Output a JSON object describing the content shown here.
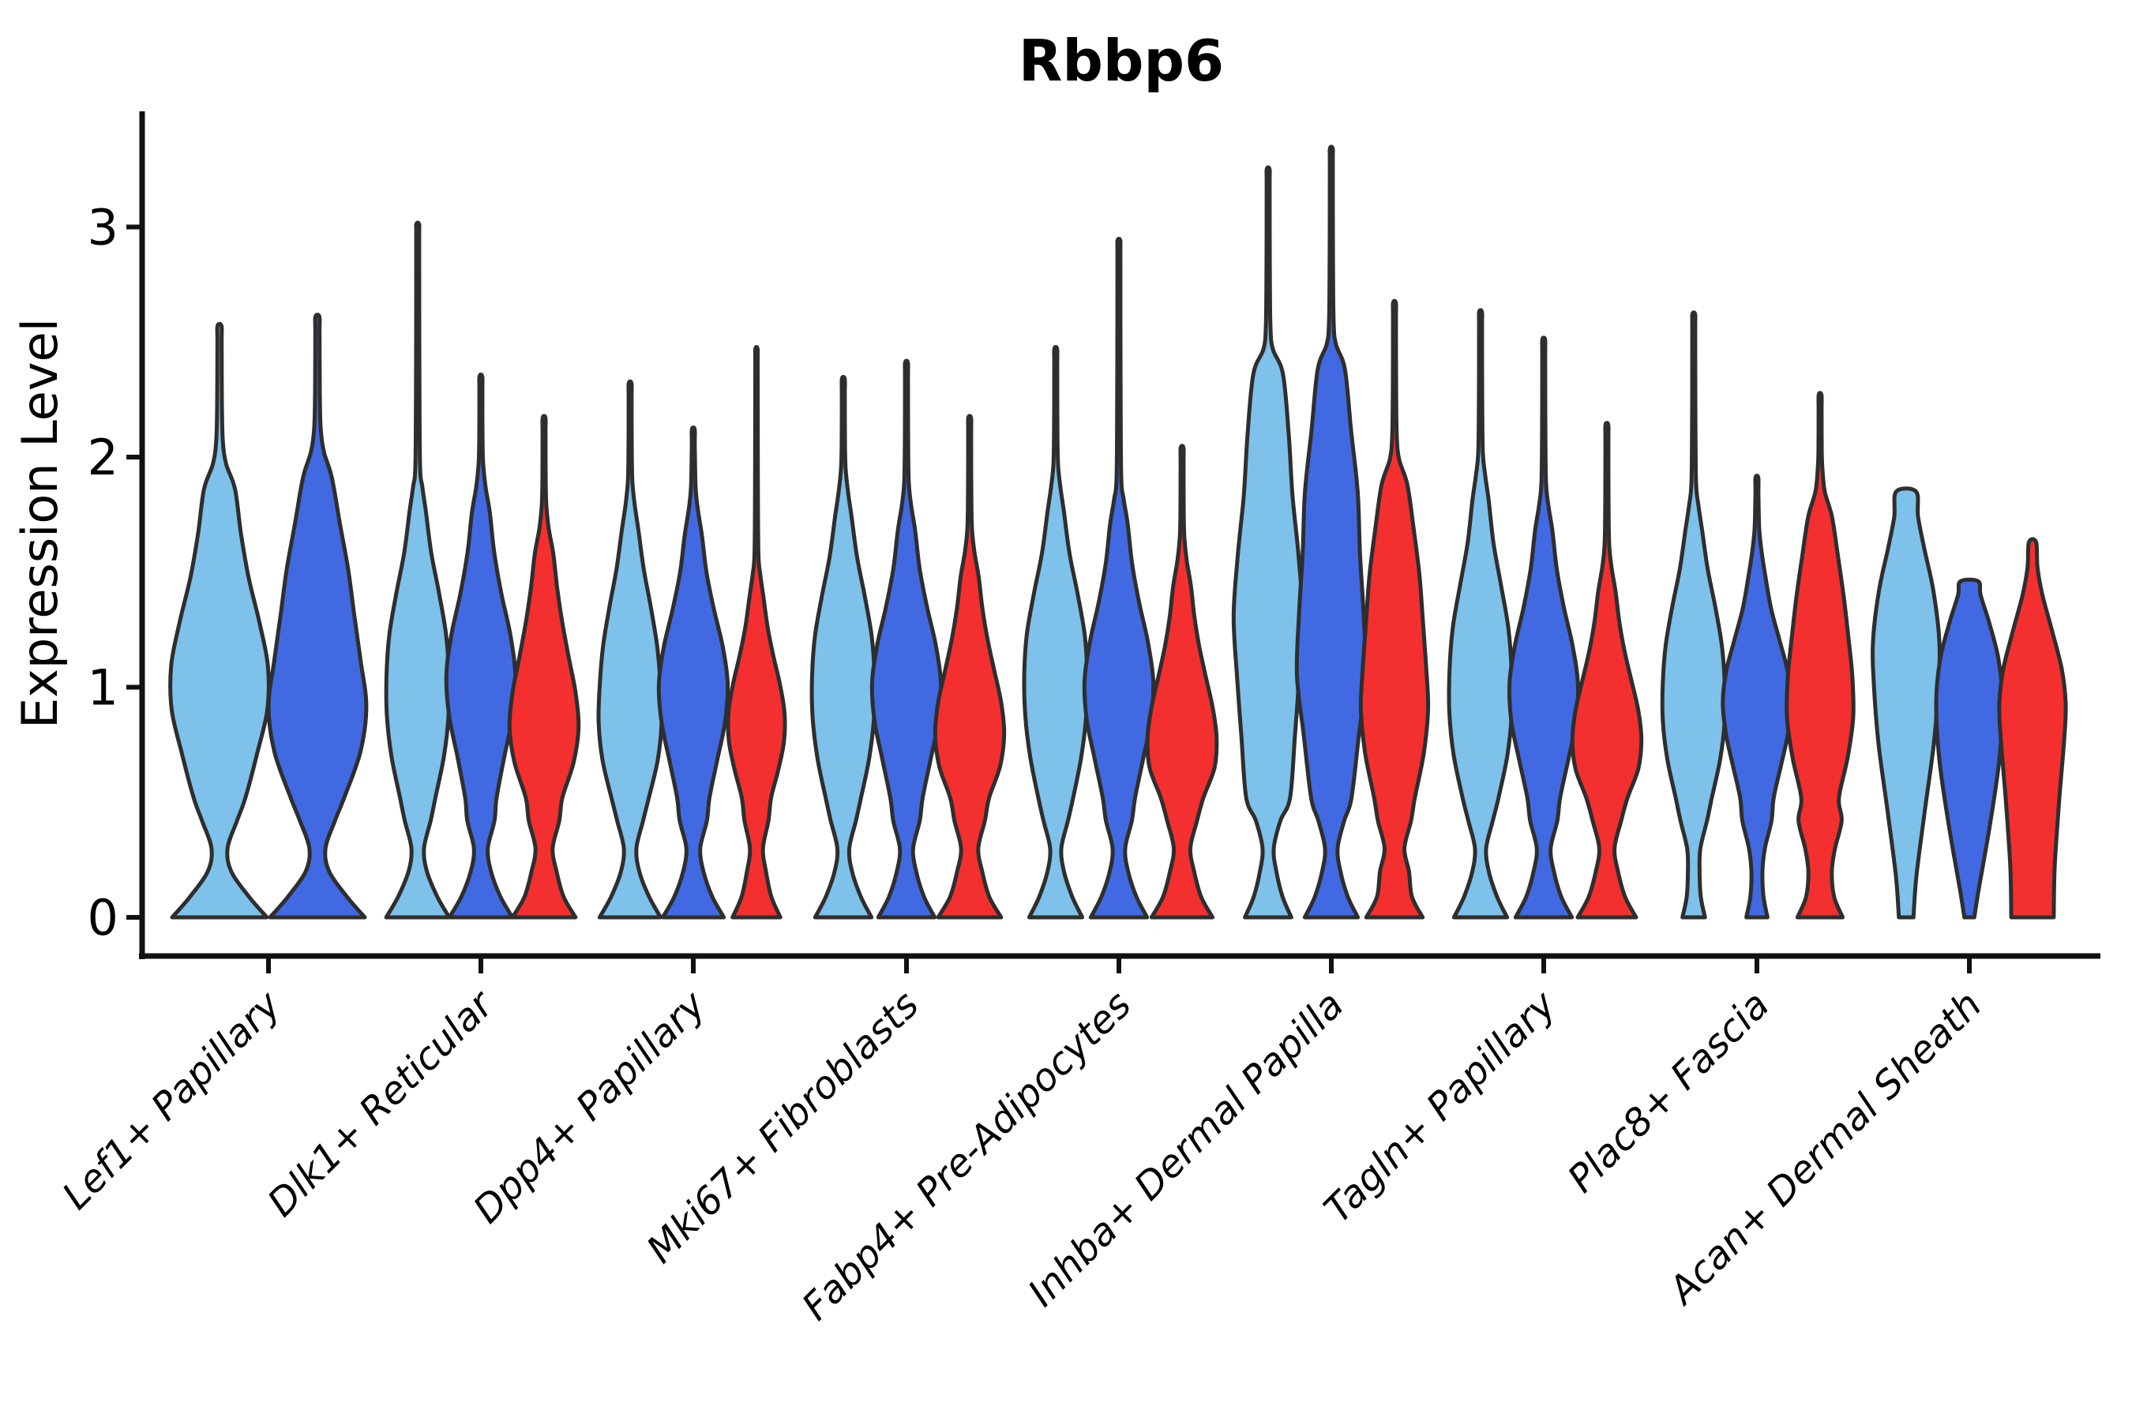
{
  "page": {
    "background": "#ffffff"
  },
  "chart_data": {
    "type": "violin",
    "title": "Rbbp6",
    "ylabel": "Expression Level",
    "xlabel": "",
    "yticks": [
      0,
      1,
      2,
      3
    ],
    "ylim": [
      0,
      3.49
    ],
    "grid": "off",
    "legend": "none",
    "colors": {
      "light_blue": "#7EC1EA",
      "dark_blue": "#4169E1",
      "red": "#F42F2F",
      "outline": "#2E2E2E",
      "axis": "#111111",
      "text": "#000000"
    },
    "categories": [
      "Lef1+ Papillary",
      "Dlk1+ Reticular",
      "Dpp4+ Papillary",
      "Mki67+ Fibroblasts",
      "Fabp4+ Pre-Adipocytes",
      "Inhba+ Dermal Papilla",
      "Tagln+ Papillary",
      "Plac8+ Fascia",
      "Acan+ Dermal Sheath"
    ],
    "violins": [
      {
        "cat": 0,
        "slot": 0,
        "color": "light_blue",
        "max": 2.57,
        "mode": 0.95,
        "top": 1.9,
        "waist": 0.17,
        "base": 1.0,
        "sig": 1.1
      },
      {
        "cat": 0,
        "slot": 1,
        "color": "dark_blue",
        "max": 2.61,
        "mode": 0.92,
        "top": 1.95,
        "waist": 0.17,
        "base": 1.0,
        "sig": 1.1
      },
      {
        "cat": 1,
        "slot": 0,
        "color": "light_blue",
        "max": 3.01,
        "mode": 0.95,
        "top": 1.8,
        "waist": 0.19,
        "base": 0.95
      },
      {
        "cat": 1,
        "slot": 1,
        "color": "dark_blue",
        "max": 2.35,
        "mode": 1.0,
        "top": 1.8,
        "waist": 0.21,
        "base": 0.95
      },
      {
        "cat": 1,
        "slot": 2,
        "color": "red",
        "max": 2.17,
        "mode": 0.83,
        "top": 1.62,
        "waist": 0.26,
        "base": 0.95
      },
      {
        "cat": 2,
        "slot": 0,
        "color": "light_blue",
        "max": 2.32,
        "mode": 0.88,
        "top": 1.72,
        "waist": 0.19,
        "base": 0.92
      },
      {
        "cat": 2,
        "slot": 1,
        "color": "dark_blue",
        "max": 2.12,
        "mode": 0.95,
        "top": 1.7,
        "waist": 0.21,
        "base": 0.92
      },
      {
        "cat": 2,
        "slot": 2,
        "color": "red",
        "max": 2.47,
        "mode": 0.85,
        "top": 1.42,
        "waist": 0.24,
        "base": 0.88,
        "scale": 0.82
      },
      {
        "cat": 3,
        "slot": 0,
        "color": "light_blue",
        "max": 2.34,
        "mode": 0.95,
        "top": 1.78,
        "waist": 0.18,
        "base": 0.85
      },
      {
        "cat": 3,
        "slot": 1,
        "color": "dark_blue",
        "max": 2.41,
        "mode": 0.95,
        "top": 1.72,
        "waist": 0.2,
        "base": 0.85
      },
      {
        "cat": 3,
        "slot": 2,
        "color": "red",
        "max": 2.17,
        "mode": 0.78,
        "top": 1.52,
        "waist": 0.26,
        "base": 0.95
      },
      {
        "cat": 4,
        "slot": 0,
        "color": "light_blue",
        "max": 2.47,
        "mode": 0.97,
        "top": 1.8,
        "waist": 0.17,
        "base": 0.8
      },
      {
        "cat": 4,
        "slot": 1,
        "color": "dark_blue",
        "max": 2.94,
        "mode": 0.95,
        "top": 1.75,
        "waist": 0.19,
        "base": 0.85
      },
      {
        "cat": 4,
        "slot": 2,
        "color": "red",
        "max": 2.04,
        "mode": 0.72,
        "top": 1.48,
        "waist": 0.25,
        "base": 0.92
      },
      {
        "cat": 5,
        "slot": 0,
        "color": "light_blue",
        "max": 3.25,
        "mode": 1.22,
        "top": 2.4,
        "waist": 0.17,
        "base": 0.7,
        "sig": 1.35
      },
      {
        "cat": 5,
        "slot": 1,
        "color": "dark_blue",
        "max": 3.34,
        "mode": 1.18,
        "top": 2.42,
        "waist": 0.19,
        "base": 0.8,
        "sig": 1.35
      },
      {
        "cat": 5,
        "slot": 2,
        "color": "red",
        "max": 2.67,
        "mode": 1.0,
        "top": 1.92,
        "waist": 0.3,
        "base": 0.85,
        "sig": 1.25
      },
      {
        "cat": 6,
        "slot": 0,
        "color": "light_blue",
        "max": 2.63,
        "mode": 0.93,
        "top": 1.85,
        "waist": 0.17,
        "base": 0.8
      },
      {
        "cat": 6,
        "slot": 1,
        "color": "dark_blue",
        "max": 2.51,
        "mode": 0.93,
        "top": 1.72,
        "waist": 0.21,
        "base": 0.85
      },
      {
        "cat": 6,
        "slot": 2,
        "color": "red",
        "max": 2.14,
        "mode": 0.74,
        "top": 1.45,
        "waist": 0.23,
        "base": 0.88
      },
      {
        "cat": 7,
        "slot": 0,
        "color": "light_blue",
        "max": 2.62,
        "mode": 0.92,
        "top": 1.72,
        "waist": 0.2,
        "base": 0.34
      },
      {
        "cat": 7,
        "slot": 1,
        "color": "dark_blue",
        "max": 1.91,
        "mode": 0.9,
        "top": 1.52,
        "waist": 0.24,
        "base": 0.32
      },
      {
        "cat": 7,
        "slot": 2,
        "color": "red",
        "max": 2.27,
        "mode": 1.0,
        "top": 1.78,
        "waist": 0.45,
        "base": 0.68,
        "sig": 1.15
      },
      {
        "cat": 8,
        "slot": 0,
        "color": "light_blue",
        "max": 1.85,
        "style": "flat",
        "profile": [
          [
            0,
            0.22
          ],
          [
            0.18,
            0.31
          ],
          [
            0.45,
            0.55
          ],
          [
            0.75,
            0.83
          ],
          [
            1.0,
            0.97
          ],
          [
            1.2,
            1.0
          ],
          [
            1.42,
            0.82
          ],
          [
            1.6,
            0.55
          ],
          [
            1.74,
            0.36
          ],
          [
            1.85,
            0.3
          ]
        ]
      },
      {
        "cat": 8,
        "slot": 1,
        "color": "dark_blue",
        "max": 1.46,
        "style": "flat",
        "profile": [
          [
            0,
            0.15
          ],
          [
            0.12,
            0.28
          ],
          [
            0.4,
            0.62
          ],
          [
            0.68,
            0.9
          ],
          [
            0.93,
            1.0
          ],
          [
            1.12,
            0.88
          ],
          [
            1.28,
            0.6
          ],
          [
            1.4,
            0.34
          ],
          [
            1.46,
            0.27
          ]
        ]
      },
      {
        "cat": 8,
        "slot": 2,
        "color": "red",
        "max": 1.63,
        "style": "flat",
        "profile": [
          [
            0,
            0.64
          ],
          [
            0.22,
            0.67
          ],
          [
            0.5,
            0.8
          ],
          [
            0.78,
            0.96
          ],
          [
            0.93,
            1.0
          ],
          [
            1.08,
            0.88
          ],
          [
            1.25,
            0.58
          ],
          [
            1.4,
            0.3
          ],
          [
            1.52,
            0.15
          ],
          [
            1.63,
            0.11
          ]
        ]
      }
    ]
  }
}
